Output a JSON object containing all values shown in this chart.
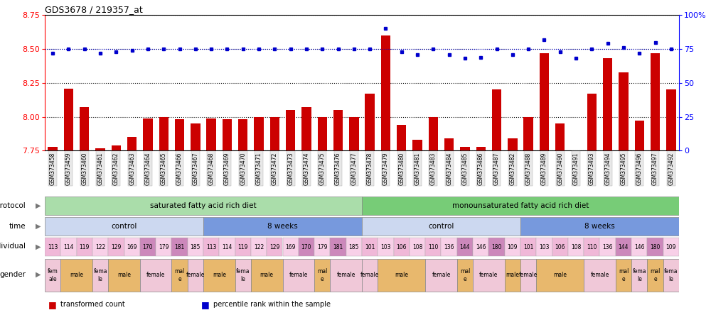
{
  "title": "GDS3678 / 219357_at",
  "samples": [
    "GSM373458",
    "GSM373459",
    "GSM373460",
    "GSM373461",
    "GSM373462",
    "GSM373463",
    "GSM373464",
    "GSM373465",
    "GSM373466",
    "GSM373467",
    "GSM373468",
    "GSM373469",
    "GSM373470",
    "GSM373471",
    "GSM373472",
    "GSM373473",
    "GSM373474",
    "GSM373475",
    "GSM373476",
    "GSM373477",
    "GSM373478",
    "GSM373479",
    "GSM373480",
    "GSM373481",
    "GSM373483",
    "GSM373484",
    "GSM373485",
    "GSM373486",
    "GSM373487",
    "GSM373482",
    "GSM373488",
    "GSM373489",
    "GSM373490",
    "GSM373491",
    "GSM373493",
    "GSM373494",
    "GSM373495",
    "GSM373496",
    "GSM373497",
    "GSM373492"
  ],
  "bar_values": [
    7.78,
    8.21,
    8.07,
    7.77,
    7.79,
    7.85,
    7.99,
    8.0,
    7.98,
    7.95,
    7.99,
    7.98,
    7.98,
    8.0,
    8.0,
    8.05,
    8.07,
    8.0,
    8.05,
    8.0,
    8.17,
    8.6,
    7.94,
    7.83,
    8.0,
    7.84,
    7.78,
    7.78,
    8.2,
    7.84,
    8.0,
    8.47,
    7.95,
    7.73,
    8.17,
    8.43,
    8.33,
    7.97,
    8.47,
    8.2
  ],
  "percentile_values": [
    72,
    75,
    75,
    72,
    73,
    74,
    75,
    75,
    75,
    75,
    75,
    75,
    75,
    75,
    75,
    75,
    75,
    75,
    75,
    75,
    75,
    90,
    73,
    71,
    75,
    71,
    68,
    69,
    75,
    71,
    75,
    82,
    73,
    68,
    75,
    79,
    76,
    72,
    80,
    75
  ],
  "ylim_left": [
    7.75,
    8.75
  ],
  "ylim_right": [
    0,
    100
  ],
  "yticks_left": [
    7.75,
    8.0,
    8.25,
    8.5,
    8.75
  ],
  "yticks_right": [
    0,
    25,
    50,
    75,
    100
  ],
  "bar_color": "#cc0000",
  "dot_color": "#0000cc",
  "bar_bottom": 7.75,
  "protocol_groups": [
    {
      "label": "saturated fatty acid rich diet",
      "start": 0,
      "end": 20,
      "color": "#aaddaa"
    },
    {
      "label": "monounsaturated fatty acid rich diet",
      "start": 20,
      "end": 40,
      "color": "#77cc77"
    }
  ],
  "time_groups": [
    {
      "label": "control",
      "start": 0,
      "end": 10,
      "color": "#ccd8f0"
    },
    {
      "label": "8 weeks",
      "start": 10,
      "end": 20,
      "color": "#7799dd"
    },
    {
      "label": "control",
      "start": 20,
      "end": 30,
      "color": "#ccd8f0"
    },
    {
      "label": "8 weeks",
      "start": 30,
      "end": 40,
      "color": "#7799dd"
    }
  ],
  "individual_values": [
    "113",
    "114",
    "119",
    "122",
    "129",
    "169",
    "170",
    "179",
    "181",
    "185",
    "113",
    "114",
    "119",
    "122",
    "129",
    "169",
    "170",
    "179",
    "181",
    "185",
    "101",
    "103",
    "106",
    "108",
    "110",
    "136",
    "144",
    "146",
    "180",
    "109",
    "101",
    "103",
    "106",
    "108",
    "110",
    "136",
    "144",
    "146",
    "180",
    "109"
  ],
  "individual_colors": [
    "#f0b8d8",
    "#f8d0e8",
    "#f0b8d8",
    "#f8d0e8",
    "#f0b8d8",
    "#f8d0e8",
    "#cc88bb",
    "#f8d0e8",
    "#cc88bb",
    "#f8d0e8",
    "#f0b8d8",
    "#f8d0e8",
    "#f0b8d8",
    "#f8d0e8",
    "#f0b8d8",
    "#f8d0e8",
    "#cc88bb",
    "#f8d0e8",
    "#cc88bb",
    "#f8d0e8",
    "#f0b8d8",
    "#f8d0e8",
    "#f0b8d8",
    "#f8d0e8",
    "#f0b8d8",
    "#f8d0e8",
    "#cc88bb",
    "#f8d0e8",
    "#cc88bb",
    "#f8d0e8",
    "#f0b8d8",
    "#f8d0e8",
    "#f0b8d8",
    "#f8d0e8",
    "#f0b8d8",
    "#f8d0e8",
    "#cc88bb",
    "#f8d0e8",
    "#cc88bb",
    "#f8d0e8"
  ],
  "gender_groups": [
    {
      "label": "fem\nale",
      "start": 0,
      "end": 1,
      "is_male": false
    },
    {
      "label": "male",
      "start": 1,
      "end": 3,
      "is_male": true
    },
    {
      "label": "fema\nle",
      "start": 3,
      "end": 4,
      "is_male": false
    },
    {
      "label": "male",
      "start": 4,
      "end": 6,
      "is_male": true
    },
    {
      "label": "female",
      "start": 6,
      "end": 8,
      "is_male": false
    },
    {
      "label": "mal\ne",
      "start": 8,
      "end": 9,
      "is_male": true
    },
    {
      "label": "female",
      "start": 9,
      "end": 10,
      "is_male": false
    },
    {
      "label": "male",
      "start": 10,
      "end": 12,
      "is_male": true
    },
    {
      "label": "fema\nle",
      "start": 12,
      "end": 13,
      "is_male": false
    },
    {
      "label": "male",
      "start": 13,
      "end": 15,
      "is_male": true
    },
    {
      "label": "female",
      "start": 15,
      "end": 17,
      "is_male": false
    },
    {
      "label": "mal\ne",
      "start": 17,
      "end": 18,
      "is_male": true
    },
    {
      "label": "female",
      "start": 18,
      "end": 20,
      "is_male": false
    },
    {
      "label": "female",
      "start": 20,
      "end": 21,
      "is_male": false
    },
    {
      "label": "male",
      "start": 21,
      "end": 24,
      "is_male": true
    },
    {
      "label": "female",
      "start": 24,
      "end": 26,
      "is_male": false
    },
    {
      "label": "mal\ne",
      "start": 26,
      "end": 27,
      "is_male": true
    },
    {
      "label": "female",
      "start": 27,
      "end": 29,
      "is_male": false
    },
    {
      "label": "male",
      "start": 29,
      "end": 30,
      "is_male": true
    },
    {
      "label": "female",
      "start": 30,
      "end": 31,
      "is_male": false
    },
    {
      "label": "male",
      "start": 31,
      "end": 34,
      "is_male": true
    },
    {
      "label": "female",
      "start": 34,
      "end": 36,
      "is_male": false
    },
    {
      "label": "mal\ne",
      "start": 36,
      "end": 37,
      "is_male": true
    },
    {
      "label": "fema\nle",
      "start": 37,
      "end": 38,
      "is_male": false
    },
    {
      "label": "mal\ne",
      "start": 38,
      "end": 39,
      "is_male": true
    },
    {
      "label": "fema\nle",
      "start": 39,
      "end": 40,
      "is_male": false
    }
  ],
  "male_color": "#e8b86d",
  "female_color": "#f0c8d8",
  "legend_items": [
    {
      "color": "#cc0000",
      "label": "transformed count"
    },
    {
      "color": "#0000cc",
      "label": "percentile rank within the sample"
    }
  ],
  "row_labels": [
    "protocol",
    "time",
    "individual",
    "gender"
  ]
}
